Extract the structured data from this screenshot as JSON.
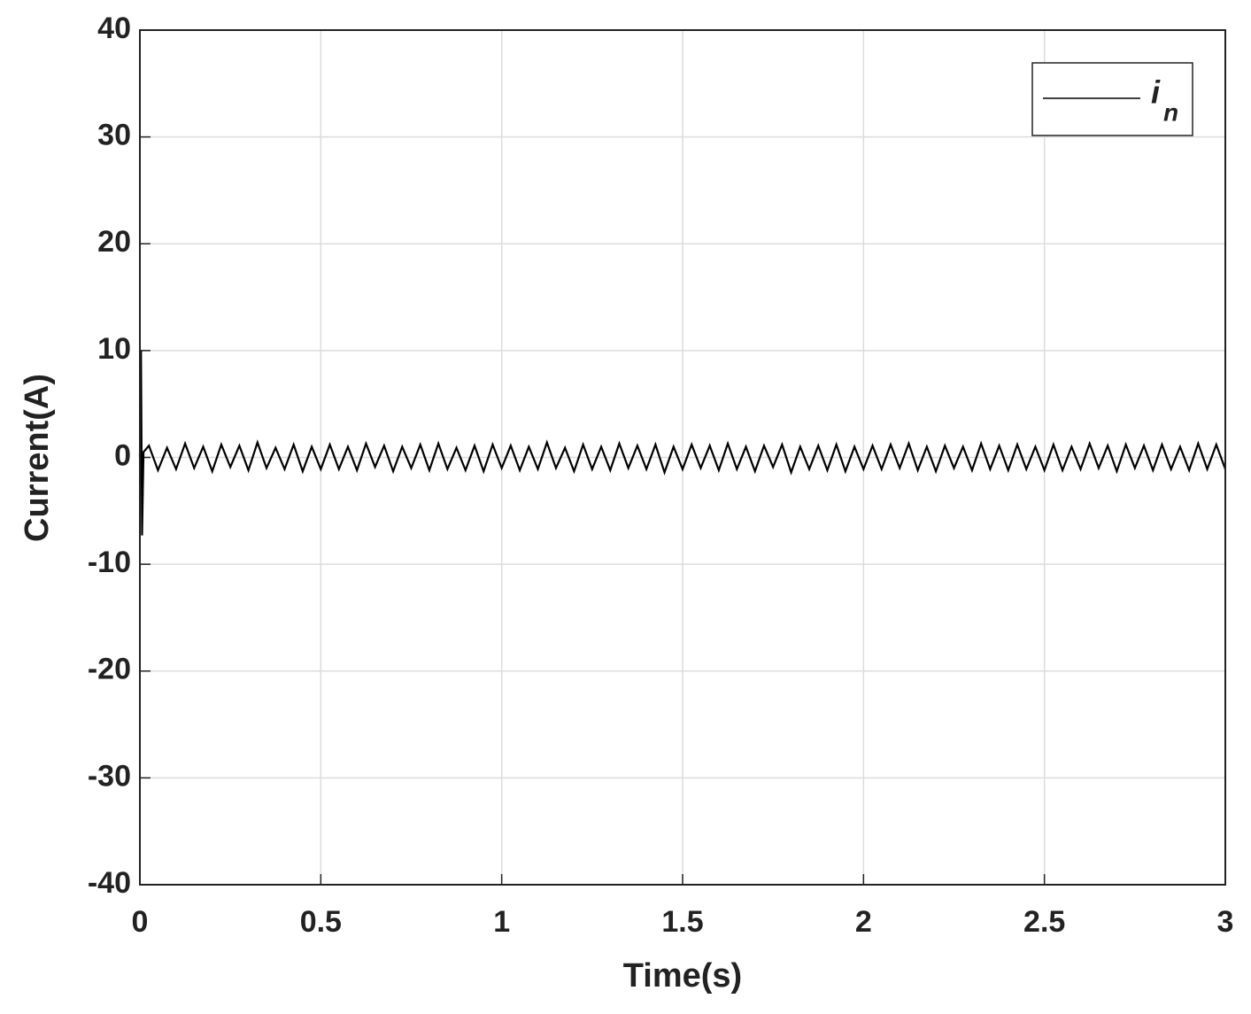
{
  "chart_data": {
    "type": "line",
    "xlabel": "Time(s)",
    "ylabel": "Current(A)",
    "xlim": [
      0,
      3
    ],
    "ylim": [
      -40,
      40
    ],
    "xticks": [
      0,
      0.5,
      1,
      1.5,
      2,
      2.5,
      3
    ],
    "yticks": [
      -40,
      -30,
      -20,
      -10,
      0,
      10,
      20,
      30,
      40
    ],
    "grid": true,
    "legend": "upper right",
    "x": [
      0,
      0.003,
      0.006,
      0.01,
      0.025,
      0.05,
      0.075,
      0.1,
      0.125,
      0.15,
      0.175,
      0.2,
      0.225,
      0.25,
      0.275,
      0.3,
      0.325,
      0.35,
      0.375,
      0.4,
      0.425,
      0.45,
      0.475,
      0.5,
      0.525,
      0.55,
      0.575,
      0.6,
      0.625,
      0.65,
      0.675,
      0.7,
      0.725,
      0.75,
      0.775,
      0.8,
      0.825,
      0.85,
      0.875,
      0.9,
      0.925,
      0.95,
      0.975,
      1,
      1.025,
      1.05,
      1.075,
      1.1,
      1.125,
      1.15,
      1.175,
      1.2,
      1.225,
      1.25,
      1.275,
      1.3,
      1.325,
      1.35,
      1.375,
      1.4,
      1.425,
      1.45,
      1.475,
      1.5,
      1.525,
      1.55,
      1.575,
      1.6,
      1.625,
      1.65,
      1.675,
      1.7,
      1.725,
      1.75,
      1.775,
      1.8,
      1.825,
      1.85,
      1.875,
      1.9,
      1.925,
      1.95,
      1.975,
      2,
      2.025,
      2.05,
      2.075,
      2.1,
      2.125,
      2.15,
      2.175,
      2.2,
      2.225,
      2.25,
      2.275,
      2.3,
      2.325,
      2.35,
      2.375,
      2.4,
      2.425,
      2.45,
      2.475,
      2.5,
      2.525,
      2.55,
      2.575,
      2.6,
      2.625,
      2.65,
      2.675,
      2.7,
      2.725,
      2.75,
      2.775,
      2.8,
      2.825,
      2.85,
      2.875,
      2.9,
      2.925,
      2.95,
      2.975,
      3
    ],
    "series": [
      {
        "name": "i",
        "subscript": "n",
        "color": "#000000",
        "values": [
          0,
          10,
          -7.3,
          0.5,
          1.1,
          -1.2,
          0.9,
          -1.1,
          1.3,
          -1.0,
          1.0,
          -1.3,
          1.2,
          -0.9,
          1.1,
          -1.2,
          1.4,
          -1.0,
          0.9,
          -1.1,
          1.2,
          -1.3,
          1.0,
          -1.1,
          1.2,
          -1.1,
          1.0,
          -1.2,
          1.3,
          -0.9,
          1.1,
          -1.3,
          1.0,
          -1.0,
          1.2,
          -1.2,
          1.3,
          -1.1,
          0.9,
          -1.2,
          1.1,
          -1.3,
          1.2,
          -1.0,
          1.1,
          -1.2,
          1.0,
          -1.1,
          1.4,
          -1.0,
          0.9,
          -1.3,
          1.2,
          -1.1,
          1.0,
          -1.2,
          1.3,
          -1.0,
          1.1,
          -1.1,
          1.2,
          -1.4,
          1.0,
          -1.1,
          1.2,
          -1.0,
          1.1,
          -1.2,
          1.3,
          -1.1,
          1.0,
          -1.3,
          1.1,
          -0.9,
          1.2,
          -1.4,
          1.0,
          -1.1,
          1.1,
          -1.2,
          1.2,
          -1.3,
          1.0,
          -1.1,
          1.1,
          -1.1,
          1.2,
          -1.0,
          1.3,
          -1.2,
          1.0,
          -1.3,
          1.1,
          -1.0,
          1.0,
          -1.2,
          1.3,
          -1.1,
          1.1,
          -1.2,
          1.2,
          -1.1,
          1.0,
          -1.2,
          1.2,
          -1.2,
          1.0,
          -1.1,
          1.3,
          -1.0,
          1.1,
          -1.3,
          1.2,
          -1.0,
          1.1,
          -1.2,
          1.2,
          -1.1,
          1.0,
          -1.2,
          1.3,
          -1.1,
          1.2,
          -1.1
        ]
      }
    ]
  }
}
